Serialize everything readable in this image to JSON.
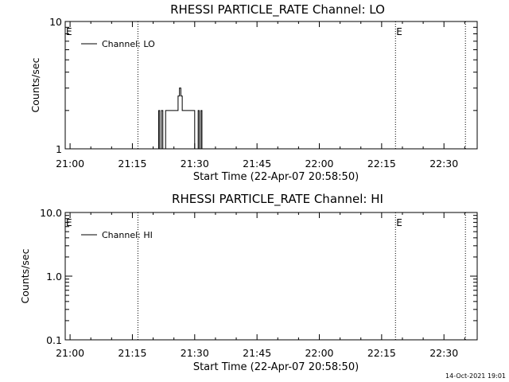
{
  "chart_data": [
    {
      "type": "line",
      "title": "RHESSI PARTICLE_RATE Channel: LO",
      "xlabel": "Start Time (22-Apr-07 20:58:50)",
      "ylabel": "Counts/sec",
      "yscale": "log",
      "ylim": [
        1,
        10
      ],
      "xlim": [
        "20:58:50",
        "22:38:00"
      ],
      "x_ticks": [
        "21:00",
        "21:15",
        "21:30",
        "21:45",
        "22:00",
        "22:15",
        "22:30"
      ],
      "y_ticks": [
        "1",
        "10"
      ],
      "legend": {
        "placement": "top-left"
      },
      "series": [
        {
          "name": "Channel: LO",
          "points": [
            [
              "21:21:20",
              1
            ],
            [
              "21:21:20",
              2
            ],
            [
              "21:21:35",
              2
            ],
            [
              "21:21:35",
              1
            ],
            [
              "21:22:00",
              1
            ],
            [
              "21:22:00",
              2
            ],
            [
              "21:22:20",
              2
            ],
            [
              "21:22:20",
              1
            ],
            [
              "21:23:00",
              1
            ],
            [
              "21:23:00",
              2
            ],
            [
              "21:26:00",
              2
            ],
            [
              "21:26:00",
              2.6
            ],
            [
              "21:26:20",
              2.6
            ],
            [
              "21:26:20",
              3
            ],
            [
              "21:26:40",
              3
            ],
            [
              "21:26:40",
              2.6
            ],
            [
              "21:27:00",
              2.6
            ],
            [
              "21:27:00",
              2
            ],
            [
              "21:30:00",
              2
            ],
            [
              "21:30:00",
              1
            ],
            [
              "21:30:50",
              1
            ],
            [
              "21:30:50",
              2
            ],
            [
              "21:31:05",
              2
            ],
            [
              "21:31:05",
              1
            ],
            [
              "21:31:30",
              1
            ],
            [
              "21:31:30",
              2
            ],
            [
              "21:31:45",
              2
            ],
            [
              "21:31:45",
              1
            ]
          ]
        }
      ],
      "annotations": [
        {
          "label": "E",
          "x": "20:58:50"
        },
        {
          "label": "E",
          "x": "22:18:20"
        }
      ],
      "vertical_lines": [
        "21:16:20",
        "22:18:20",
        "22:35:10"
      ]
    },
    {
      "type": "line",
      "title": "RHESSI PARTICLE_RATE Channel: HI",
      "xlabel": "Start Time (22-Apr-07 20:58:50)",
      "ylabel": "Counts/sec",
      "yscale": "log",
      "ylim": [
        0.1,
        10
      ],
      "xlim": [
        "20:58:50",
        "22:38:00"
      ],
      "x_ticks": [
        "21:00",
        "21:15",
        "21:30",
        "21:45",
        "22:00",
        "22:15",
        "22:30"
      ],
      "y_ticks": [
        "0.1",
        "1.0",
        "10.0"
      ],
      "legend": {
        "placement": "top-left"
      },
      "series": [
        {
          "name": "Channel: HI",
          "points": []
        }
      ],
      "annotations": [
        {
          "label": "E",
          "x": "20:58:50"
        },
        {
          "label": "E",
          "x": "22:18:20"
        }
      ],
      "vertical_lines": [
        "21:16:20",
        "22:18:20",
        "22:35:10"
      ]
    }
  ],
  "footer": {
    "timestamp": "14-Oct-2021 19:01"
  }
}
